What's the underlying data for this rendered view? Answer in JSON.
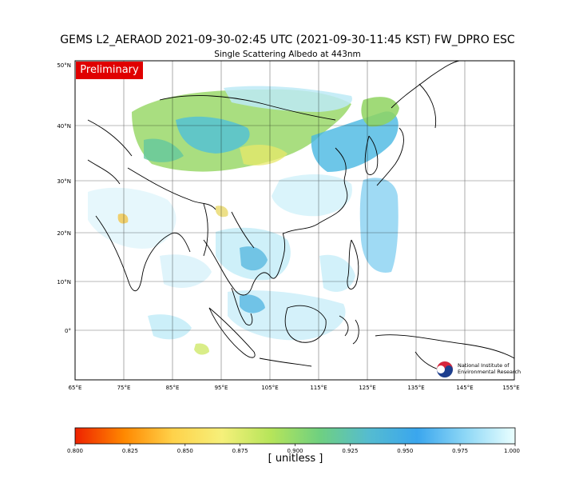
{
  "title": "GEMS L2_AERAOD 2021-09-30-02:45 UTC (2021-09-30-11:45 KST)  FW_DPRO ESC",
  "subtitle": "Single Scattering Albedo at 443nm",
  "badge": "Preliminary",
  "lat_ticks": [
    "50°N",
    "40°N",
    "30°N",
    "20°N",
    "10°N",
    "0°"
  ],
  "lon_ticks": [
    "65°E",
    "75°E",
    "85°E",
    "95°E",
    "105°E",
    "115°E",
    "125°E",
    "135°E",
    "145°E",
    "155°E"
  ],
  "colorbar": {
    "ticks": [
      "0.800",
      "0.825",
      "0.850",
      "0.875",
      "0.900",
      "0.925",
      "0.950",
      "0.975",
      "1.000"
    ],
    "label": "[ unitless ]",
    "colors": [
      "#ee2200",
      "#ff8800",
      "#ffd24a",
      "#f6f07a",
      "#b6e55a",
      "#6fd080",
      "#55bcd0",
      "#3aa6ee",
      "#8fd8f6",
      "#eaffff"
    ]
  },
  "logo": {
    "line1": "National Institute of",
    "line2": "Environmental Research"
  }
}
